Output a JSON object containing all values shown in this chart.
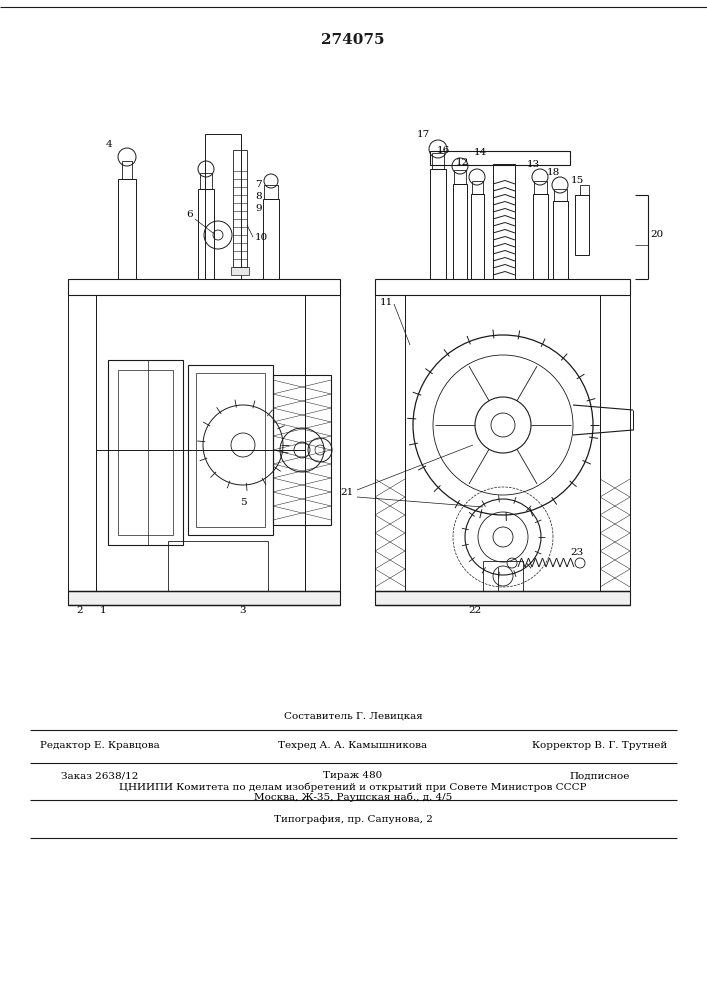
{
  "patent_number": "274075",
  "bg_color": "#ffffff",
  "line_color": "#1a1a1a",
  "fig_width": 7.07,
  "fig_height": 10.0,
  "footer": {
    "line1_center": "Составитель Г. Левицкая",
    "line2_left": "Редактор Е. Кравцова",
    "line2_center": "Техред А. А. Камышникова",
    "line2_right": "Корректор В. Г. Трутней",
    "line3_left": "Заказ 2638/12",
    "line3_center": "Тираж 480",
    "line3_right": "Подписное",
    "line4": "ЦНИИПИ Комитета по делам изобретений и открытий при Совете Министров СССР",
    "line5": "Москва, Ж-35, Раушская наб., д. 4/5",
    "line6": "Типография, пр. Сапунова, 2"
  }
}
